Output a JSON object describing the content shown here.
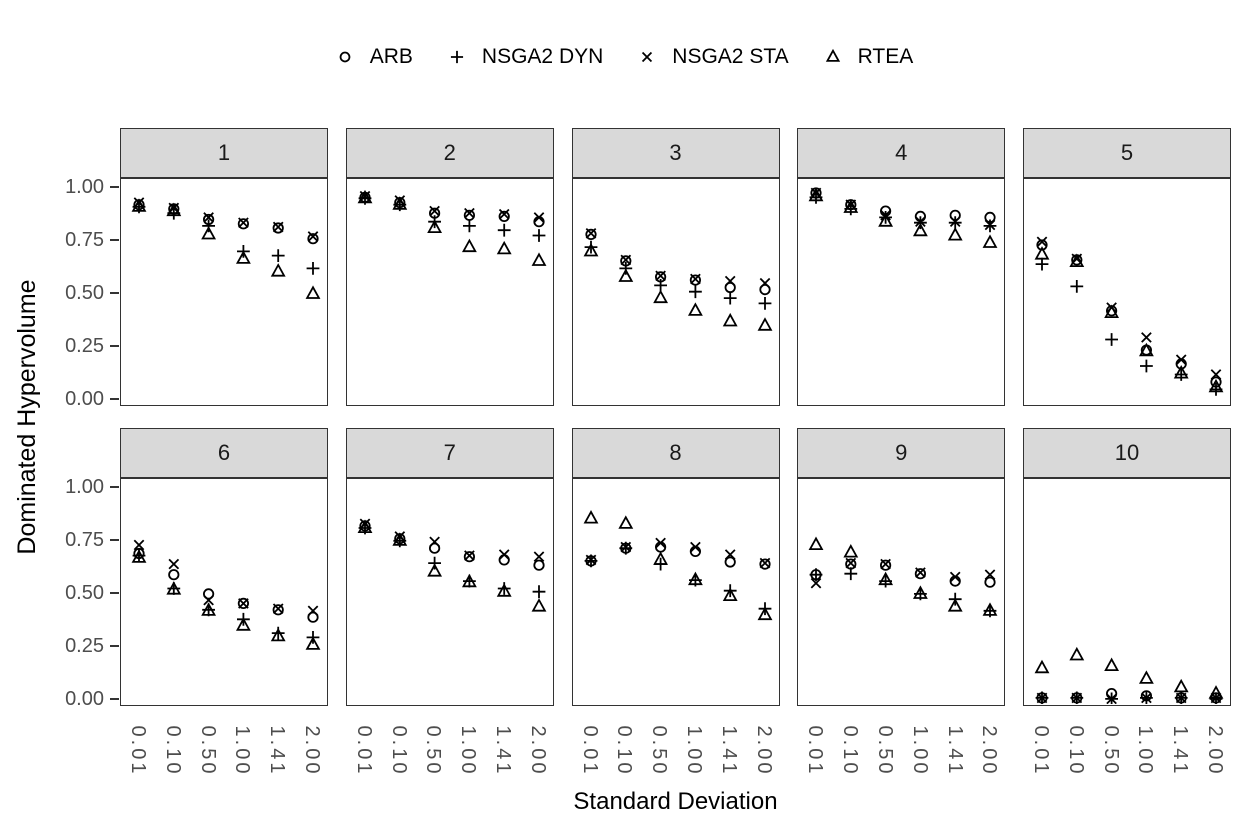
{
  "chart_data": {
    "type": "scatter",
    "title": "",
    "xlabel": "Standard Deviation",
    "ylabel": "Dominated Hypervolume",
    "grid": false,
    "legend_position": "top",
    "facet_layout": {
      "rows": 2,
      "cols": 5
    },
    "x_categories": [
      "0.01",
      "0.10",
      "0.50",
      "1.00",
      "1.41",
      "2.00"
    ],
    "y_ticks": [
      "1.00",
      "0.75",
      "0.50",
      "0.25",
      "0.00"
    ],
    "ylim": [
      -0.04,
      1.08
    ],
    "legend": [
      {
        "label": "ARB",
        "marker": "circle"
      },
      {
        "label": "NSGA2 DYN",
        "marker": "plus"
      },
      {
        "label": "NSGA2 STA",
        "marker": "cross"
      },
      {
        "label": "RTEA",
        "marker": "triangle"
      }
    ],
    "colors": {
      "marker": "#000000",
      "axis_text": "#4d4d4d",
      "strip_background": "#d9d9d9",
      "panel_border": "#333333"
    },
    "facets": [
      {
        "label": "1",
        "series": [
          {
            "name": "ARB",
            "values": [
              0.92,
              0.9,
              0.85,
              0.83,
              0.81,
              0.76
            ]
          },
          {
            "name": "NSGA2 DYN",
            "values": [
              0.91,
              0.88,
              0.82,
              0.7,
              0.68,
              0.62
            ]
          },
          {
            "name": "NSGA2 STA",
            "values": [
              0.93,
              0.905,
              0.86,
              0.835,
              0.815,
              0.77
            ]
          },
          {
            "name": "RTEA",
            "values": [
              0.91,
              0.89,
              0.78,
              0.665,
              0.605,
              0.5
            ]
          }
        ]
      },
      {
        "label": "2",
        "series": [
          {
            "name": "ARB",
            "values": [
              0.955,
              0.93,
              0.88,
              0.87,
              0.865,
              0.84
            ]
          },
          {
            "name": "NSGA2 DYN",
            "values": [
              0.95,
              0.92,
              0.84,
              0.82,
              0.8,
              0.775
            ]
          },
          {
            "name": "NSGA2 STA",
            "values": [
              0.96,
              0.94,
              0.89,
              0.88,
              0.875,
              0.86
            ]
          },
          {
            "name": "RTEA",
            "values": [
              0.95,
              0.92,
              0.81,
              0.72,
              0.71,
              0.655
            ]
          }
        ]
      },
      {
        "label": "3",
        "series": [
          {
            "name": "ARB",
            "values": [
              0.78,
              0.655,
              0.58,
              0.565,
              0.53,
              0.52
            ]
          },
          {
            "name": "NSGA2 DYN",
            "values": [
              0.72,
              0.62,
              0.54,
              0.51,
              0.48,
              0.455
            ]
          },
          {
            "name": "NSGA2 STA",
            "values": [
              0.785,
              0.66,
              0.585,
              0.57,
              0.56,
              0.55
            ]
          },
          {
            "name": "RTEA",
            "values": [
              0.7,
              0.58,
              0.48,
              0.42,
              0.37,
              0.35
            ]
          }
        ]
      },
      {
        "label": "4",
        "series": [
          {
            "name": "ARB",
            "values": [
              0.975,
              0.92,
              0.89,
              0.865,
              0.87,
              0.86
            ]
          },
          {
            "name": "NSGA2 DYN",
            "values": [
              0.955,
              0.9,
              0.86,
              0.835,
              0.835,
              0.82
            ]
          },
          {
            "name": "NSGA2 STA",
            "values": [
              0.975,
              0.92,
              0.87,
              0.84,
              0.84,
              0.825
            ]
          },
          {
            "name": "RTEA",
            "values": [
              0.96,
              0.905,
              0.84,
              0.795,
              0.775,
              0.74
            ]
          }
        ]
      },
      {
        "label": "5",
        "series": [
          {
            "name": "ARB",
            "values": [
              0.73,
              0.66,
              0.42,
              0.235,
              0.17,
              0.085
            ]
          },
          {
            "name": "NSGA2 DYN",
            "values": [
              0.64,
              0.535,
              0.285,
              0.16,
              0.12,
              0.05
            ]
          },
          {
            "name": "NSGA2 STA",
            "values": [
              0.745,
              0.665,
              0.435,
              0.295,
              0.19,
              0.12
            ]
          },
          {
            "name": "RTEA",
            "values": [
              0.685,
              0.65,
              0.41,
              0.23,
              0.125,
              0.06
            ]
          }
        ]
      },
      {
        "label": "6",
        "series": [
          {
            "name": "ARB",
            "values": [
              0.69,
              0.59,
              0.5,
              0.455,
              0.425,
              0.39
            ]
          },
          {
            "name": "NSGA2 DYN",
            "values": [
              0.68,
              0.525,
              0.425,
              0.38,
              0.315,
              0.295
            ]
          },
          {
            "name": "NSGA2 STA",
            "values": [
              0.73,
              0.64,
              0.47,
              0.455,
              0.43,
              0.42
            ]
          },
          {
            "name": "RTEA",
            "values": [
              0.67,
              0.52,
              0.42,
              0.35,
              0.3,
              0.26
            ]
          }
        ]
      },
      {
        "label": "7",
        "series": [
          {
            "name": "ARB",
            "values": [
              0.82,
              0.76,
              0.715,
              0.675,
              0.66,
              0.635
            ]
          },
          {
            "name": "NSGA2 DYN",
            "values": [
              0.81,
              0.75,
              0.645,
              0.56,
              0.525,
              0.51
            ]
          },
          {
            "name": "NSGA2 STA",
            "values": [
              0.83,
              0.77,
              0.745,
              0.68,
              0.685,
              0.675
            ]
          },
          {
            "name": "RTEA",
            "values": [
              0.81,
              0.75,
              0.605,
              0.555,
              0.51,
              0.44
            ]
          }
        ]
      },
      {
        "label": "8",
        "series": [
          {
            "name": "ARB",
            "values": [
              0.655,
              0.715,
              0.72,
              0.7,
              0.65,
              0.64
            ]
          },
          {
            "name": "NSGA2 DYN",
            "values": [
              0.655,
              0.715,
              0.64,
              0.565,
              0.515,
              0.43
            ]
          },
          {
            "name": "NSGA2 STA",
            "values": [
              0.66,
              0.72,
              0.74,
              0.72,
              0.685,
              0.645
            ]
          },
          {
            "name": "RTEA",
            "values": [
              0.855,
              0.83,
              0.66,
              0.565,
              0.49,
              0.4
            ]
          }
        ]
      },
      {
        "label": "9",
        "series": [
          {
            "name": "ARB",
            "values": [
              0.59,
              0.64,
              0.635,
              0.595,
              0.56,
              0.555
            ]
          },
          {
            "name": "NSGA2 DYN",
            "values": [
              0.59,
              0.595,
              0.56,
              0.5,
              0.475,
              0.42
            ]
          },
          {
            "name": "NSGA2 STA",
            "values": [
              0.55,
              0.645,
              0.64,
              0.6,
              0.58,
              0.59
            ]
          },
          {
            "name": "RTEA",
            "values": [
              0.73,
              0.695,
              0.565,
              0.5,
              0.44,
              0.42
            ]
          }
        ]
      },
      {
        "label": "10",
        "series": [
          {
            "name": "ARB",
            "values": [
              0.01,
              0.01,
              0.03,
              0.02,
              0.01,
              0.01
            ]
          },
          {
            "name": "NSGA2 DYN",
            "values": [
              0.01,
              0.01,
              0.005,
              0.01,
              0.01,
              0.005
            ]
          },
          {
            "name": "NSGA2 STA",
            "values": [
              0.01,
              0.01,
              0.005,
              0.01,
              0.01,
              0.01
            ]
          },
          {
            "name": "RTEA",
            "values": [
              0.15,
              0.21,
              0.16,
              0.1,
              0.06,
              0.03
            ]
          }
        ]
      }
    ]
  }
}
